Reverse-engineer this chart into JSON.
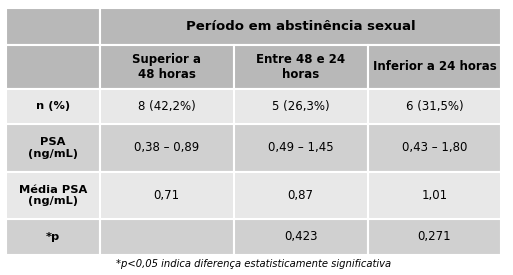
{
  "title": "Período em abstinência sexual",
  "col_headers": [
    "Superior a\n48 horas",
    "Entre 48 e 24\nhoras",
    "Inferior a 24 horas"
  ],
  "row_headers": [
    "n (%)",
    "PSA\n(ng/mL)",
    "Média PSA\n(ng/mL)",
    "*p"
  ],
  "data": [
    [
      "8 (42,2%)",
      "5 (26,3%)",
      "6 (31,5%)"
    ],
    [
      "0,38 – 0,89",
      "0,49 – 1,45",
      "0,43 – 1,80"
    ],
    [
      "0,71",
      "0,87",
      "1,01"
    ],
    [
      "",
      "0,423",
      "0,271"
    ]
  ],
  "footnote": "*p<0,05 indica diferença estatisticamente significativa",
  "c_header": "#b8b8b8",
  "c_light": "#e8e8e8",
  "c_dark": "#d0d0d0",
  "figsize": [
    5.13,
    2.75
  ],
  "dpi": 100
}
